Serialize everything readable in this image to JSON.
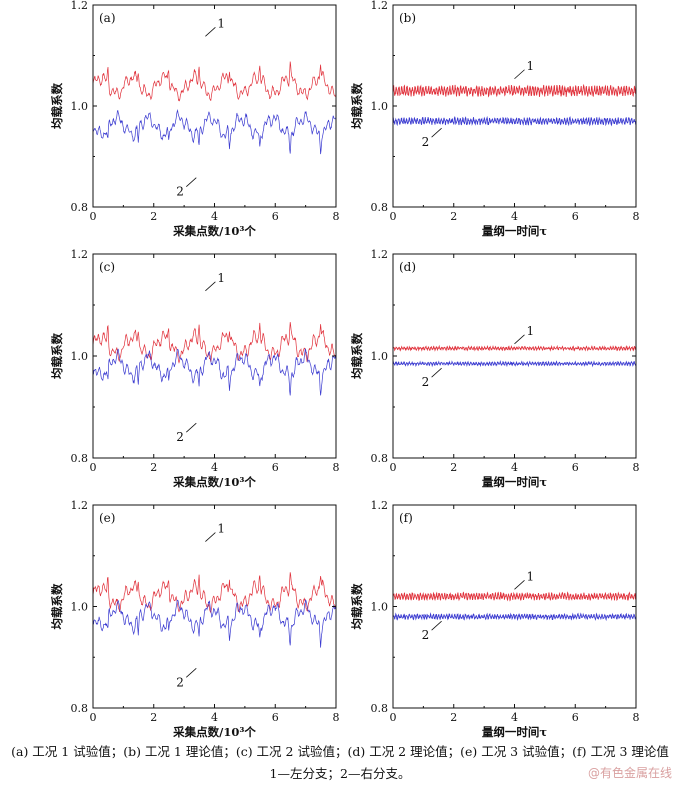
{
  "caption_line1": "(a) 工况 1 试验值；(b) 工况 1 理论值；(c) 工况 2 试验值；(d) 工况 2 理论值；(e) 工况 3 试验值；(f) 工况 3 理论值",
  "caption_line2": "1—左分支；2—右分支。",
  "watermark": "@有色金属在线",
  "colors": {
    "series1": "#e0303a",
    "series2": "#3a3ad0"
  },
  "chart_data": [
    {
      "panel": "(a)",
      "type": "line",
      "xlabel": "采集点数/10³个",
      "ylabel": "均载系数",
      "xlim": [
        0,
        8
      ],
      "ylim": [
        0.8,
        1.2
      ],
      "xticks": [
        "0",
        "2",
        "4",
        "6",
        "8"
      ],
      "yticks": [
        "0.8",
        "1.0",
        "1.2"
      ],
      "series": [
        {
          "name": "1",
          "mean": 1.04,
          "min": 1.0,
          "max": 1.13
        },
        {
          "name": "2",
          "mean": 0.96,
          "min": 0.87,
          "max": 1.0
        }
      ]
    },
    {
      "panel": "(b)",
      "type": "line",
      "xlabel": "量纲一时间τ",
      "ylabel": "均载系数",
      "xlim": [
        0,
        8
      ],
      "ylim": [
        0.8,
        1.2
      ],
      "xticks": [
        "0",
        "2",
        "4",
        "6",
        "8"
      ],
      "yticks": [
        "0.8",
        "1.0",
        "1.2"
      ],
      "series": [
        {
          "name": "1",
          "mean": 1.03,
          "min": 1.02,
          "max": 1.05
        },
        {
          "name": "2",
          "mean": 0.97,
          "min": 0.96,
          "max": 0.98
        }
      ]
    },
    {
      "panel": "(c)",
      "type": "line",
      "xlabel": "采集点数/10³个",
      "ylabel": "均载系数",
      "xlim": [
        0,
        8
      ],
      "ylim": [
        0.8,
        1.2
      ],
      "xticks": [
        "0",
        "2",
        "4",
        "6",
        "8"
      ],
      "yticks": [
        "0.8",
        "1.0",
        "1.2"
      ],
      "series": [
        {
          "name": "1",
          "mean": 1.02,
          "min": 0.98,
          "max": 1.12
        },
        {
          "name": "2",
          "mean": 0.98,
          "min": 0.88,
          "max": 1.02
        }
      ]
    },
    {
      "panel": "(d)",
      "type": "line",
      "xlabel": "量纲一时间τ",
      "ylabel": "均载系数",
      "xlim": [
        0,
        8
      ],
      "ylim": [
        0.8,
        1.2
      ],
      "xticks": [
        "0",
        "2",
        "4",
        "6",
        "8"
      ],
      "yticks": [
        "0.8",
        "1.0",
        "1.2"
      ],
      "series": [
        {
          "name": "1",
          "mean": 1.015,
          "min": 1.01,
          "max": 1.02
        },
        {
          "name": "2",
          "mean": 0.985,
          "min": 0.98,
          "max": 0.99
        }
      ]
    },
    {
      "panel": "(e)",
      "type": "line",
      "xlabel": "采集点数/10³个",
      "ylabel": "均载系数",
      "xlim": [
        0,
        8
      ],
      "ylim": [
        0.8,
        1.2
      ],
      "xticks": [
        "0",
        "2",
        "4",
        "6",
        "8"
      ],
      "yticks": [
        "0.8",
        "1.0",
        "1.2"
      ],
      "series": [
        {
          "name": "1",
          "mean": 1.02,
          "min": 0.98,
          "max": 1.12
        },
        {
          "name": "2",
          "mean": 0.98,
          "min": 0.89,
          "max": 1.03
        }
      ]
    },
    {
      "panel": "(f)",
      "type": "line",
      "xlabel": "量纲一时间τ",
      "ylabel": "均载系数",
      "xlim": [
        0,
        8
      ],
      "ylim": [
        0.8,
        1.2
      ],
      "xticks": [
        "0",
        "2",
        "4",
        "6",
        "8"
      ],
      "yticks": [
        "0.8",
        "1.0",
        "1.2"
      ],
      "series": [
        {
          "name": "1",
          "mean": 1.02,
          "min": 1.01,
          "max": 1.03
        },
        {
          "name": "2",
          "mean": 0.98,
          "min": 0.975,
          "max": 0.99
        }
      ]
    }
  ]
}
